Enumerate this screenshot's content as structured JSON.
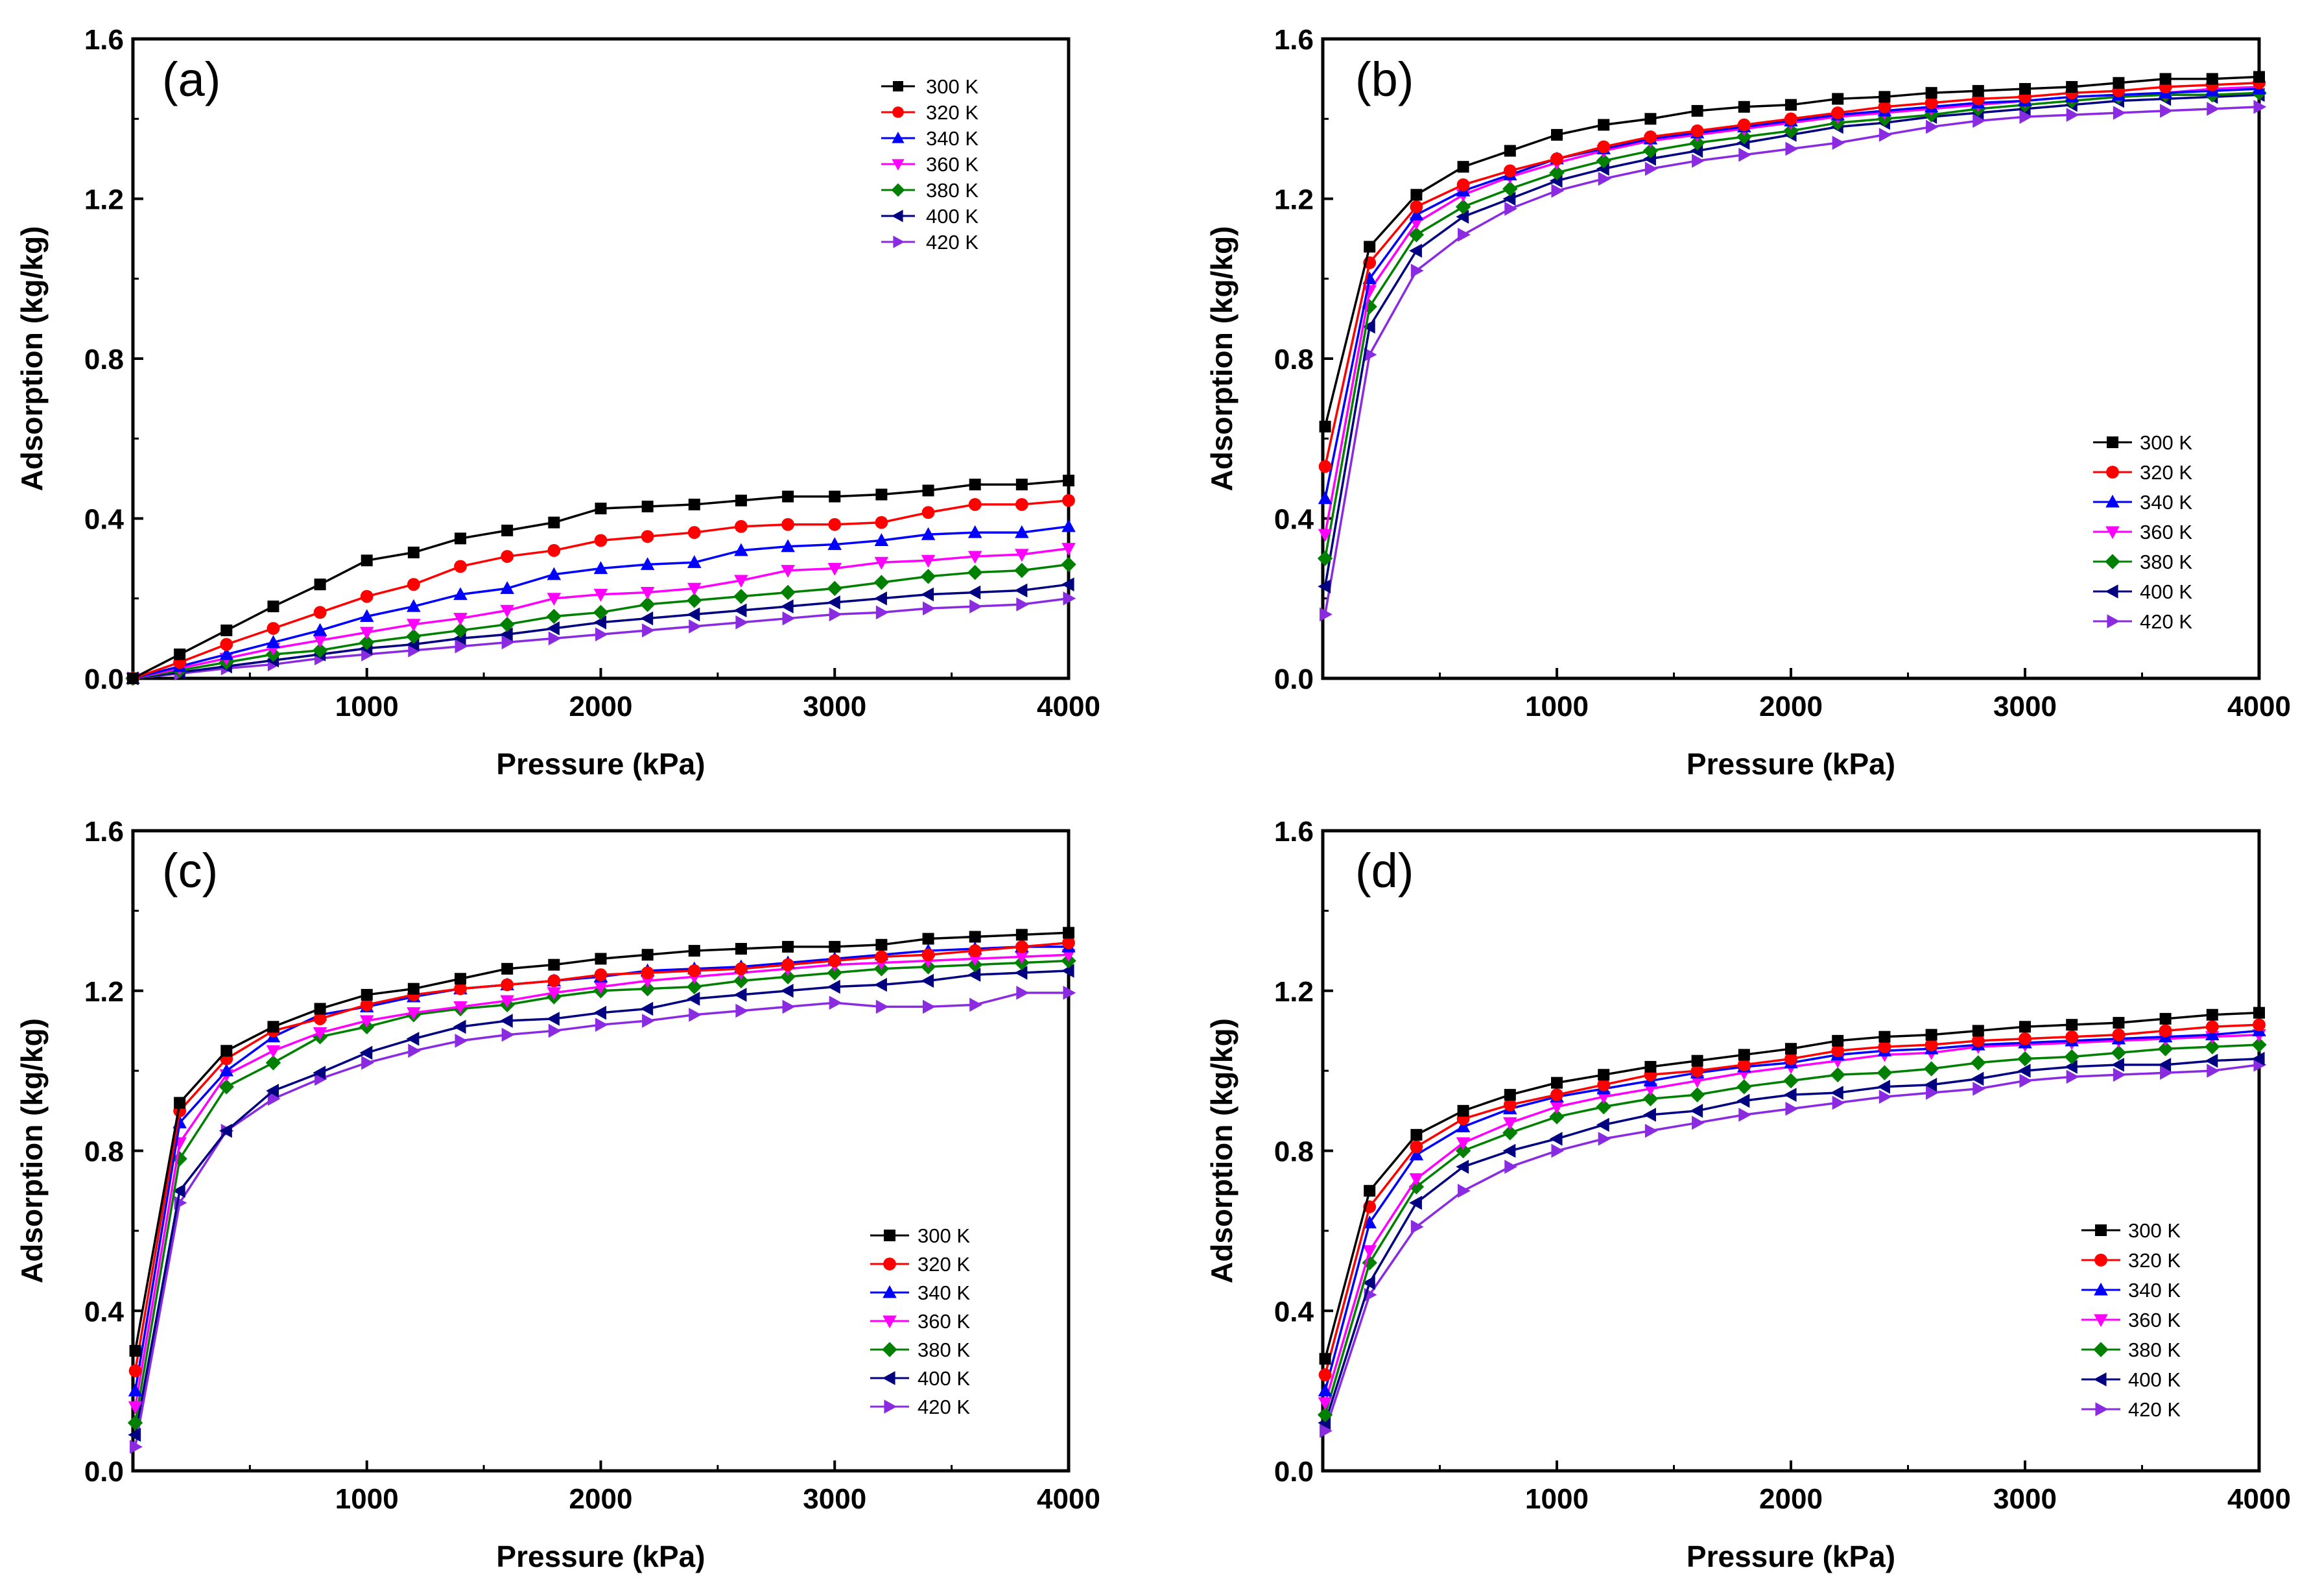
{
  "figure": {
    "series_names": [
      "300 K",
      "320 K",
      "340 K",
      "360 K",
      "380 K",
      "400 K",
      "420 K"
    ],
    "series_colors": [
      "#000000",
      "#ff0000",
      "#0000ff",
      "#ff00ff",
      "#008000",
      "#000080",
      "#8a2be2"
    ],
    "markers": [
      "square",
      "circle",
      "triangle-up",
      "triangle-down",
      "diamond",
      "triangle-left",
      "triangle-right"
    ]
  },
  "chart_data": [
    {
      "type": "line",
      "panel_label": "(a)",
      "xlabel": "Pressure (kPa)",
      "ylabel": "Adsorption (kg/kg)",
      "xlim": [
        0,
        4000
      ],
      "ylim": [
        0,
        1.6
      ],
      "x_ticks": [
        1000,
        2000,
        3000,
        4000
      ],
      "x_tick_labels": [
        "1000",
        "2000",
        "3000",
        "4000"
      ],
      "y_ticks": [
        0,
        0.4,
        0.8,
        1.2,
        1.6
      ],
      "y_tick_labels": [
        "0.0",
        "0.4",
        "0.8",
        "1.2",
        "1.6"
      ],
      "legend_position": "top-right",
      "x": [
        0,
        200,
        400,
        600,
        800,
        1000,
        1200,
        1400,
        1600,
        1800,
        2000,
        2200,
        2400,
        2600,
        2800,
        3000,
        3200,
        3400,
        3600,
        3800,
        4000
      ],
      "series": [
        {
          "name": "300 K",
          "values": [
            0.0,
            0.06,
            0.12,
            0.18,
            0.235,
            0.295,
            0.315,
            0.35,
            0.37,
            0.39,
            0.425,
            0.43,
            0.435,
            0.445,
            0.455,
            0.455,
            0.46,
            0.47,
            0.485,
            0.485,
            0.495
          ]
        },
        {
          "name": "320 K",
          "values": [
            0.0,
            0.04,
            0.085,
            0.125,
            0.165,
            0.205,
            0.235,
            0.28,
            0.305,
            0.32,
            0.345,
            0.355,
            0.365,
            0.38,
            0.385,
            0.385,
            0.39,
            0.415,
            0.435,
            0.435,
            0.445
          ]
        },
        {
          "name": "340 K",
          "values": [
            0.0,
            0.03,
            0.06,
            0.09,
            0.12,
            0.155,
            0.18,
            0.21,
            0.225,
            0.26,
            0.275,
            0.285,
            0.29,
            0.32,
            0.33,
            0.335,
            0.345,
            0.36,
            0.365,
            0.365,
            0.38
          ]
        },
        {
          "name": "360 K",
          "values": [
            0.0,
            0.025,
            0.05,
            0.075,
            0.095,
            0.115,
            0.135,
            0.15,
            0.17,
            0.2,
            0.21,
            0.215,
            0.225,
            0.245,
            0.27,
            0.275,
            0.29,
            0.295,
            0.305,
            0.31,
            0.325
          ]
        },
        {
          "name": "380 K",
          "values": [
            0.0,
            0.02,
            0.04,
            0.06,
            0.07,
            0.09,
            0.105,
            0.12,
            0.135,
            0.155,
            0.165,
            0.185,
            0.195,
            0.205,
            0.215,
            0.225,
            0.24,
            0.255,
            0.265,
            0.27,
            0.285
          ]
        },
        {
          "name": "400 K",
          "values": [
            0.0,
            0.015,
            0.03,
            0.045,
            0.06,
            0.075,
            0.085,
            0.1,
            0.11,
            0.125,
            0.14,
            0.15,
            0.16,
            0.17,
            0.18,
            0.19,
            0.2,
            0.21,
            0.215,
            0.22,
            0.235
          ]
        },
        {
          "name": "420 K",
          "values": [
            0.0,
            0.012,
            0.025,
            0.035,
            0.05,
            0.06,
            0.07,
            0.08,
            0.09,
            0.1,
            0.11,
            0.12,
            0.13,
            0.14,
            0.15,
            0.16,
            0.165,
            0.175,
            0.18,
            0.185,
            0.2
          ]
        }
      ]
    },
    {
      "type": "line",
      "panel_label": "(b)",
      "xlabel": "Pressure (kPa)",
      "ylabel": "Adsorption (kg/kg)",
      "xlim": [
        0,
        4000
      ],
      "ylim": [
        0,
        1.6
      ],
      "x_ticks": [
        1000,
        2000,
        3000,
        4000
      ],
      "x_tick_labels": [
        "1000",
        "2000",
        "3000",
        "4000"
      ],
      "y_ticks": [
        0,
        0.4,
        0.8,
        1.2,
        1.6
      ],
      "y_tick_labels": [
        "0.0",
        "0.4",
        "0.8",
        "1.2",
        "1.6"
      ],
      "legend_position": "middle-right",
      "x": [
        10,
        200,
        400,
        600,
        800,
        1000,
        1200,
        1400,
        1600,
        1800,
        2000,
        2200,
        2400,
        2600,
        2800,
        3000,
        3200,
        3400,
        3600,
        3800,
        4000
      ],
      "series": [
        {
          "name": "300 K",
          "values": [
            0.63,
            1.08,
            1.21,
            1.28,
            1.32,
            1.36,
            1.385,
            1.4,
            1.42,
            1.43,
            1.435,
            1.45,
            1.455,
            1.465,
            1.47,
            1.475,
            1.48,
            1.49,
            1.5,
            1.5,
            1.505
          ]
        },
        {
          "name": "320 K",
          "values": [
            0.53,
            1.04,
            1.18,
            1.235,
            1.27,
            1.3,
            1.33,
            1.355,
            1.37,
            1.385,
            1.4,
            1.415,
            1.43,
            1.44,
            1.45,
            1.455,
            1.465,
            1.47,
            1.48,
            1.485,
            1.49
          ]
        },
        {
          "name": "340 K",
          "values": [
            0.45,
            1.0,
            1.16,
            1.22,
            1.26,
            1.3,
            1.325,
            1.35,
            1.365,
            1.38,
            1.395,
            1.41,
            1.42,
            1.43,
            1.44,
            1.445,
            1.455,
            1.46,
            1.465,
            1.47,
            1.475
          ]
        },
        {
          "name": "360 K",
          "values": [
            0.36,
            0.97,
            1.14,
            1.21,
            1.255,
            1.29,
            1.32,
            1.345,
            1.36,
            1.375,
            1.39,
            1.405,
            1.415,
            1.425,
            1.435,
            1.445,
            1.455,
            1.46,
            1.465,
            1.475,
            1.48
          ]
        },
        {
          "name": "380 K",
          "values": [
            0.3,
            0.93,
            1.11,
            1.18,
            1.225,
            1.265,
            1.295,
            1.32,
            1.34,
            1.355,
            1.37,
            1.39,
            1.4,
            1.41,
            1.425,
            1.435,
            1.445,
            1.455,
            1.46,
            1.46,
            1.465
          ]
        },
        {
          "name": "400 K",
          "values": [
            0.23,
            0.88,
            1.07,
            1.155,
            1.2,
            1.245,
            1.275,
            1.3,
            1.32,
            1.34,
            1.36,
            1.38,
            1.39,
            1.405,
            1.415,
            1.425,
            1.435,
            1.445,
            1.45,
            1.455,
            1.46
          ]
        },
        {
          "name": "420 K",
          "values": [
            0.16,
            0.81,
            1.02,
            1.11,
            1.175,
            1.22,
            1.25,
            1.275,
            1.295,
            1.31,
            1.325,
            1.34,
            1.36,
            1.38,
            1.395,
            1.405,
            1.41,
            1.415,
            1.42,
            1.425,
            1.43
          ]
        }
      ]
    },
    {
      "type": "line",
      "panel_label": "(c)",
      "xlabel": "Pressure (kPa)",
      "ylabel": "Adsorption (kg/kg)",
      "xlim": [
        0,
        4000
      ],
      "ylim": [
        0,
        1.6
      ],
      "x_ticks": [
        1000,
        2000,
        3000,
        4000
      ],
      "x_tick_labels": [
        "1000",
        "2000",
        "3000",
        "4000"
      ],
      "y_ticks": [
        0,
        0.4,
        0.8,
        1.2,
        1.6
      ],
      "y_tick_labels": [
        "0.0",
        "0.4",
        "0.8",
        "1.2",
        "1.6"
      ],
      "legend_position": "bottom-right",
      "x": [
        10,
        200,
        400,
        600,
        800,
        1000,
        1200,
        1400,
        1600,
        1800,
        2000,
        2200,
        2400,
        2600,
        2800,
        3000,
        3200,
        3400,
        3600,
        3800,
        4000
      ],
      "series": [
        {
          "name": "300 K",
          "values": [
            0.3,
            0.92,
            1.05,
            1.11,
            1.155,
            1.19,
            1.205,
            1.23,
            1.255,
            1.265,
            1.28,
            1.29,
            1.3,
            1.305,
            1.31,
            1.31,
            1.315,
            1.33,
            1.335,
            1.34,
            1.345
          ]
        },
        {
          "name": "320 K",
          "values": [
            0.25,
            0.9,
            1.03,
            1.1,
            1.13,
            1.165,
            1.19,
            1.205,
            1.215,
            1.225,
            1.24,
            1.245,
            1.25,
            1.255,
            1.265,
            1.275,
            1.285,
            1.29,
            1.3,
            1.31,
            1.32
          ]
        },
        {
          "name": "340 K",
          "values": [
            0.2,
            0.87,
            1.0,
            1.085,
            1.14,
            1.16,
            1.185,
            1.205,
            1.215,
            1.225,
            1.235,
            1.25,
            1.255,
            1.26,
            1.27,
            1.28,
            1.29,
            1.3,
            1.305,
            1.31,
            1.31
          ]
        },
        {
          "name": "360 K",
          "values": [
            0.16,
            0.82,
            0.99,
            1.05,
            1.095,
            1.125,
            1.145,
            1.16,
            1.175,
            1.195,
            1.21,
            1.225,
            1.235,
            1.245,
            1.255,
            1.265,
            1.27,
            1.275,
            1.28,
            1.285,
            1.29
          ]
        },
        {
          "name": "380 K",
          "values": [
            0.12,
            0.78,
            0.96,
            1.02,
            1.085,
            1.11,
            1.14,
            1.155,
            1.165,
            1.185,
            1.2,
            1.205,
            1.21,
            1.225,
            1.235,
            1.245,
            1.255,
            1.26,
            1.265,
            1.27,
            1.275
          ]
        },
        {
          "name": "400 K",
          "values": [
            0.09,
            0.7,
            0.85,
            0.95,
            0.995,
            1.045,
            1.08,
            1.11,
            1.125,
            1.13,
            1.145,
            1.155,
            1.18,
            1.19,
            1.2,
            1.21,
            1.215,
            1.225,
            1.24,
            1.245,
            1.25
          ]
        },
        {
          "name": "420 K",
          "values": [
            0.06,
            0.67,
            0.85,
            0.93,
            0.98,
            1.02,
            1.05,
            1.075,
            1.09,
            1.1,
            1.115,
            1.125,
            1.14,
            1.15,
            1.16,
            1.17,
            1.16,
            1.16,
            1.165,
            1.195,
            1.195
          ]
        }
      ]
    },
    {
      "type": "line",
      "panel_label": "(d)",
      "xlabel": "Pressure (kPa)",
      "ylabel": "Adsorption (kg/kg)",
      "xlim": [
        0,
        4000
      ],
      "ylim": [
        0,
        1.6
      ],
      "x_ticks": [
        1000,
        2000,
        3000,
        4000
      ],
      "x_tick_labels": [
        "1000",
        "2000",
        "3000",
        "4000"
      ],
      "y_ticks": [
        0,
        0.4,
        0.8,
        1.2,
        1.6
      ],
      "y_tick_labels": [
        "0.0",
        "0.4",
        "0.8",
        "1.2",
        "1.6"
      ],
      "legend_position": "bottom-right",
      "x": [
        10,
        200,
        400,
        600,
        800,
        1000,
        1200,
        1400,
        1600,
        1800,
        2000,
        2200,
        2400,
        2600,
        2800,
        3000,
        3200,
        3400,
        3600,
        3800,
        4000
      ],
      "series": [
        {
          "name": "300 K",
          "values": [
            0.28,
            0.7,
            0.84,
            0.9,
            0.94,
            0.97,
            0.99,
            1.01,
            1.025,
            1.04,
            1.055,
            1.075,
            1.085,
            1.09,
            1.1,
            1.11,
            1.115,
            1.12,
            1.13,
            1.14,
            1.145
          ]
        },
        {
          "name": "320 K",
          "values": [
            0.24,
            0.66,
            0.81,
            0.88,
            0.915,
            0.94,
            0.965,
            0.99,
            1.0,
            1.015,
            1.03,
            1.05,
            1.06,
            1.065,
            1.075,
            1.08,
            1.085,
            1.09,
            1.1,
            1.11,
            1.115
          ]
        },
        {
          "name": "340 K",
          "values": [
            0.2,
            0.62,
            0.79,
            0.86,
            0.905,
            0.935,
            0.955,
            0.975,
            0.995,
            1.01,
            1.02,
            1.04,
            1.05,
            1.055,
            1.065,
            1.07,
            1.075,
            1.08,
            1.085,
            1.09,
            1.1
          ]
        },
        {
          "name": "360 K",
          "values": [
            0.17,
            0.55,
            0.73,
            0.82,
            0.87,
            0.91,
            0.935,
            0.955,
            0.975,
            0.995,
            1.01,
            1.025,
            1.04,
            1.045,
            1.06,
            1.065,
            1.07,
            1.075,
            1.08,
            1.085,
            1.09
          ]
        },
        {
          "name": "380 K",
          "values": [
            0.14,
            0.52,
            0.71,
            0.8,
            0.845,
            0.885,
            0.91,
            0.93,
            0.94,
            0.96,
            0.975,
            0.99,
            0.995,
            1.005,
            1.02,
            1.03,
            1.035,
            1.045,
            1.055,
            1.06,
            1.065
          ]
        },
        {
          "name": "400 K",
          "values": [
            0.12,
            0.47,
            0.67,
            0.76,
            0.8,
            0.83,
            0.865,
            0.89,
            0.9,
            0.925,
            0.94,
            0.945,
            0.96,
            0.965,
            0.98,
            1.0,
            1.01,
            1.015,
            1.015,
            1.025,
            1.03
          ]
        },
        {
          "name": "420 K",
          "values": [
            0.1,
            0.44,
            0.61,
            0.7,
            0.76,
            0.8,
            0.83,
            0.85,
            0.87,
            0.89,
            0.905,
            0.92,
            0.935,
            0.945,
            0.955,
            0.975,
            0.985,
            0.99,
            0.995,
            1.0,
            1.015
          ]
        }
      ]
    }
  ]
}
